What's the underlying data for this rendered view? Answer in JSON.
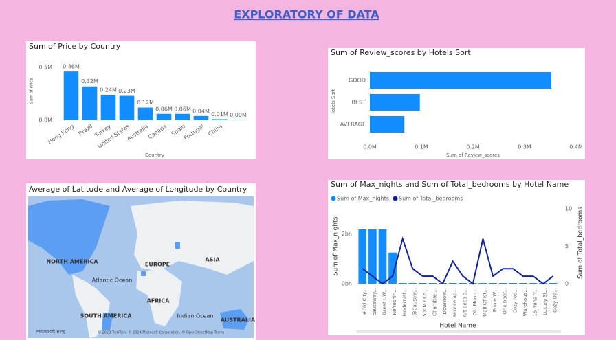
{
  "header": {
    "title": "EXPLORATORY OF DATA"
  },
  "chart_data": [
    {
      "type": "bar",
      "title": "Sum of Price by Country",
      "x_label": "Country",
      "y_label": "Sum of Price",
      "categories": [
        "Hong Kong",
        "Brazil",
        "Turkey",
        "United States",
        "Australia",
        "Canada",
        "Spain",
        "Portugal",
        "China",
        null
      ],
      "values": [
        460000,
        320000,
        240000,
        230000,
        120000,
        60000,
        60000,
        40000,
        10000,
        3000
      ],
      "value_labels": [
        "0.46M",
        "0.32M",
        "0.24M",
        "0.23M",
        "0.12M",
        "0.06M",
        "0.06M",
        "0.04M",
        "0.01M",
        "0.00M"
      ],
      "color": "#118dff",
      "ylim": [
        0,
        550000
      ],
      "yticks": [
        {
          "value": 0,
          "label": "0.0M"
        },
        {
          "value": 500000,
          "label": "0.5M"
        }
      ],
      "grid": false
    },
    {
      "type": "bar",
      "orientation": "horizontal",
      "title": "Sum of Review_scores by Hotels Sort",
      "x_label": "Sum of Review_scores",
      "y_label": "Hotels Sort",
      "categories": [
        "GOOD",
        "BEST",
        "AVERAGE"
      ],
      "values": [
        352000,
        97000,
        67000
      ],
      "color": "#118dff",
      "xlim": [
        0,
        400000
      ],
      "xticks": [
        {
          "value": 0,
          "label": "0.0M"
        },
        {
          "value": 100000,
          "label": "0.1M"
        },
        {
          "value": 200000,
          "label": "0.2M"
        },
        {
          "value": 300000,
          "label": "0.3M"
        },
        {
          "value": 400000,
          "label": "0.4M"
        }
      ],
      "grid": false
    },
    {
      "type": "combo",
      "title": "Sum of Max_nights and Sum of Total_bedrooms by Hotel Name",
      "x_label": "Hotel Name",
      "y_label": "Sum of Max_nights",
      "y2_label": "Sum of Total_bedrooms",
      "categories": [
        "#Old City...",
        "causeway...",
        "Great UW...",
        "Refreshin...",
        "Modernist...",
        "@Causew...",
        "500M3 Co...",
        "Chambre ...",
        "Downtow...",
        "service ap...",
        "Art deco a...",
        "Old Montr...",
        "Mall Of Ist...",
        "Prime W...",
        "One bedr...",
        "Cozy roo...",
        "Warehous...",
        "15 mins fr...",
        "Luxury St...",
        "Cozy Op..."
      ],
      "series": [
        {
          "name": "Sum of Max_nights",
          "color": "#118dff",
          "mark": "bar",
          "values": [
            2147483647,
            2147483647,
            2147483647,
            1220000000,
            0,
            0,
            0,
            0,
            0,
            0,
            0,
            0,
            0,
            0,
            0,
            0,
            0,
            0,
            0,
            0
          ]
        },
        {
          "name": "Sum of Total_bedrooms",
          "color": "#12239e",
          "mark": "line",
          "axis": "y2",
          "values": [
            2,
            1,
            0,
            1,
            6,
            2,
            1,
            1,
            0,
            3,
            1,
            0,
            6,
            1,
            2,
            2,
            1,
            1,
            0,
            1
          ]
        }
      ],
      "ylim": [
        0,
        3000000000
      ],
      "yticks": [
        {
          "value": 0,
          "label": "0bn"
        },
        {
          "value": 2000000000,
          "label": "2bn"
        }
      ],
      "y2lim": [
        0,
        10
      ],
      "y2ticks": [
        0,
        5,
        10
      ],
      "legend": "top-left"
    }
  ],
  "map": {
    "title": "Average of Latitude and Average of Longitude by Country",
    "labels": [
      "NORTH AMERICA",
      "EUROPE",
      "ASIA",
      "Atlantic Ocean",
      "AFRICA",
      "SOUTH AMERICA",
      "Indian Ocean",
      "AUSTRALIA"
    ],
    "logo": "Microsoft Bing",
    "copyright": "© 2023 TomTom, © 2024 Microsoft Corporation, © OpenStreetMap Terms"
  }
}
